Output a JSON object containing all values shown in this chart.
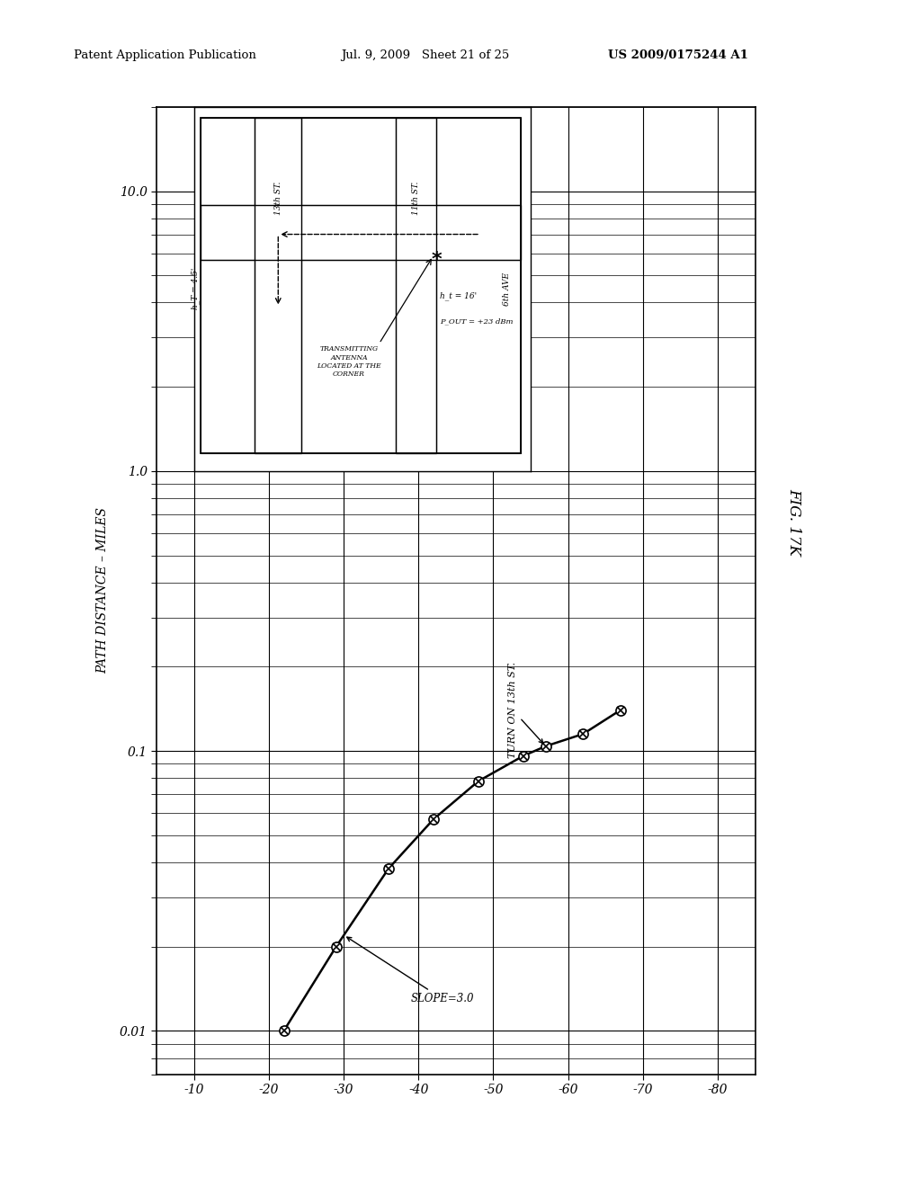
{
  "header_left": "Patent Application Publication",
  "header_mid": "Jul. 9, 2009   Sheet 21 of 25",
  "header_right": "US 2009/0175244 A1",
  "ylabel": "PATH DISTANCE – MILES",
  "xlabel_values": [
    -10,
    -20,
    -30,
    -40,
    -50,
    -60,
    -70,
    -80
  ],
  "xlabel_ticks": [
    "-10",
    "-20",
    "-30",
    "-40",
    "-50",
    "-60",
    "-70",
    "-80"
  ],
  "yticks": [
    0.01,
    0.1,
    1.0,
    10.0
  ],
  "ytick_labels": [
    "0.01",
    "0.1",
    "1.0",
    "10.0"
  ],
  "ylim": [
    0.007,
    20.0
  ],
  "xlim": [
    -5,
    -85
  ],
  "data_x": [
    -22,
    -29,
    -36,
    -42,
    -48,
    -54,
    -57,
    -62,
    -67
  ],
  "data_y": [
    0.01,
    0.02,
    0.038,
    0.057,
    0.078,
    0.096,
    0.104,
    0.115,
    0.14
  ],
  "slope_text": "SLOPE=3.0",
  "turn_text": "TURN ON 13th ST.",
  "fig_label": "FIG. 17K",
  "background_color": "#ffffff",
  "line_color": "#000000"
}
